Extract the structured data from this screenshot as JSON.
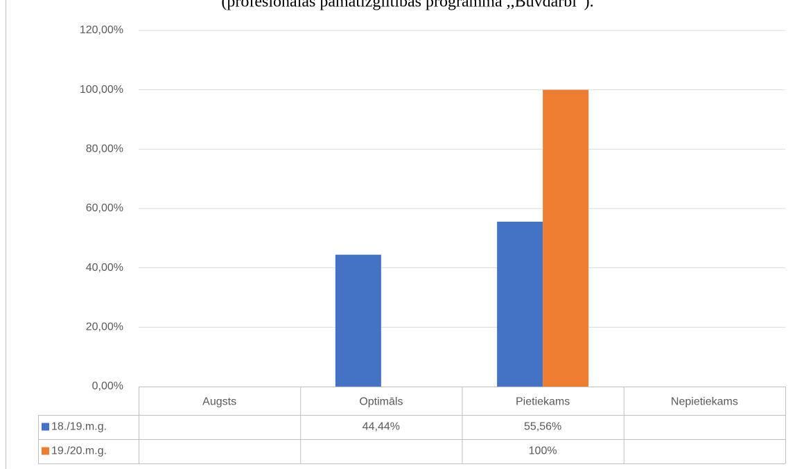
{
  "chart_data": {
    "type": "bar",
    "title": "(profesionālas pamatizglītības programma ,,Būvdarbi”).",
    "categories": [
      "Augsts",
      "Optimāls",
      "Pietiekams",
      "Nepietiekams"
    ],
    "series": [
      {
        "name": "18./19.m.g.",
        "color": "#4472c4",
        "values": [
          null,
          44.44,
          55.56,
          null
        ],
        "value_labels": [
          null,
          "44,44%",
          "55,56%",
          null
        ]
      },
      {
        "name": "19./20.m.g.",
        "color": "#ed7d31",
        "values": [
          null,
          null,
          100,
          null
        ],
        "value_labels": [
          null,
          null,
          "100%",
          null
        ]
      }
    ],
    "ylim": [
      0,
      120
    ],
    "yticks": [
      {
        "value": 0,
        "label": "0,00%"
      },
      {
        "value": 20,
        "label": "20,00%"
      },
      {
        "value": 40,
        "label": "40,00%"
      },
      {
        "value": 60,
        "label": "60,00%"
      },
      {
        "value": 80,
        "label": "80,00%"
      },
      {
        "value": 100,
        "label": "100,00%"
      },
      {
        "value": 120,
        "label": "120,00%"
      }
    ],
    "grid": true
  }
}
